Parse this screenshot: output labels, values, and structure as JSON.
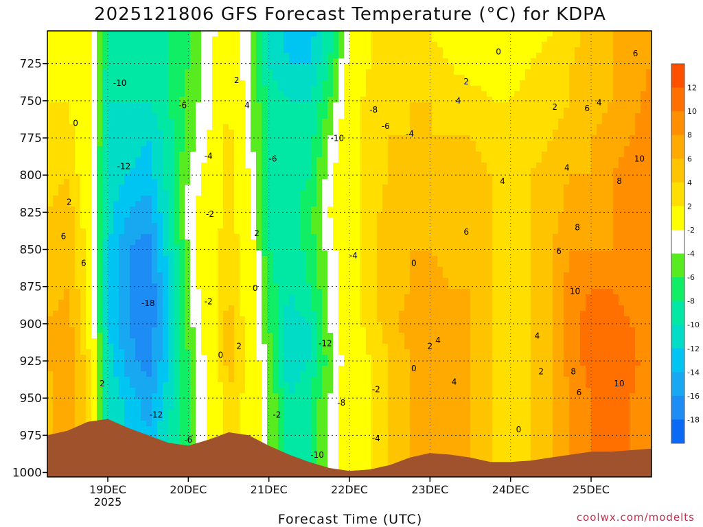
{
  "chart_data": {
    "type": "heatmap",
    "title": "2025121806 GFS Forecast Temperature (°C) for KDPA",
    "xlabel": "Forecast Time (UTC)",
    "ylabel": "",
    "credit": "coolwx.com/modelts",
    "y_unit": "hPa",
    "y_ticks": [
      725,
      750,
      775,
      800,
      825,
      850,
      875,
      900,
      925,
      950,
      975,
      1000
    ],
    "ylim": [
      1003,
      703
    ],
    "x_ticks": [
      {
        "label": "19DEC",
        "sub": "2025",
        "day": 19
      },
      {
        "label": "20DEC",
        "sub": "",
        "day": 20
      },
      {
        "label": "21DEC",
        "sub": "",
        "day": 21
      },
      {
        "label": "22DEC",
        "sub": "",
        "day": 22
      },
      {
        "label": "23DEC",
        "sub": "",
        "day": 23
      },
      {
        "label": "24DEC",
        "sub": "",
        "day": 24
      },
      {
        "label": "25DEC",
        "sub": "",
        "day": 25
      }
    ],
    "xlim_days": [
      18.25,
      25.75
    ],
    "grid": true,
    "colorbar": {
      "placement": "right",
      "labels": [
        "12",
        "10",
        "8",
        "6",
        "4",
        "2",
        "-2",
        "-4",
        "-6",
        "-8",
        "-10",
        "-12",
        "-14",
        "-16",
        "-18"
      ],
      "levels": [
        -20,
        -18,
        -16,
        -14,
        -12,
        -10,
        -8,
        -6,
        -4,
        -2,
        2,
        4,
        6,
        8,
        10,
        12,
        14
      ],
      "colors": [
        "#0a6af5",
        "#1e8cf5",
        "#18a8f2",
        "#00c4f2",
        "#00dcc6",
        "#00e8a4",
        "#10ee66",
        "#58ec20",
        "#ffffff",
        "#ffff00",
        "#ffde00",
        "#ffc400",
        "#ffaa00",
        "#ff8e00",
        "#ff7000",
        "#ff5000"
      ]
    },
    "times_days": [
      18.25,
      18.5,
      18.75,
      19.0,
      19.25,
      19.5,
      19.75,
      20.0,
      20.25,
      20.5,
      20.75,
      21.0,
      21.25,
      21.5,
      21.75,
      22.0,
      22.25,
      22.5,
      22.75,
      23.0,
      23.25,
      23.5,
      23.75,
      24.0,
      24.25,
      24.5,
      24.75,
      25.0,
      25.25,
      25.5,
      25.75
    ],
    "levels_hpa": [
      975,
      950,
      925,
      900,
      875,
      850,
      825,
      800,
      775,
      750,
      725,
      705
    ],
    "temperature_c": [
      [
        5,
        8,
        3,
        -10,
        -12,
        -14,
        -10,
        -6,
        -2,
        4,
        1,
        -4,
        -10,
        -8,
        -4,
        0,
        2,
        4,
        6,
        8,
        7,
        6,
        4,
        2,
        4,
        6,
        8,
        10,
        12,
        10,
        8
      ],
      [
        5,
        8,
        3,
        -10,
        -13,
        -15,
        -11,
        -6,
        -2,
        4,
        1,
        -4,
        -10,
        -8,
        -4,
        0,
        2,
        4,
        6,
        8,
        7,
        6,
        4,
        2,
        4,
        6,
        8,
        10,
        12,
        10,
        8
      ],
      [
        6,
        8,
        3,
        -11,
        -15,
        -17,
        -12,
        -6,
        -1,
        5,
        1,
        -5,
        -12,
        -10,
        -5,
        0,
        2,
        4,
        6,
        8,
        7,
        6,
        4,
        2,
        4,
        6,
        9,
        11,
        12,
        11,
        8
      ],
      [
        6,
        7,
        2,
        -12,
        -16,
        -18,
        -12,
        -5,
        0,
        5,
        1,
        -6,
        -11,
        -10,
        -4,
        0,
        3,
        5,
        7,
        7,
        7,
        6,
        4,
        3,
        4,
        6,
        9,
        11,
        11,
        10,
        8
      ],
      [
        5,
        6,
        2,
        -12,
        -16,
        -18,
        -12,
        -4,
        0,
        4,
        0,
        -7,
        -10,
        -8,
        -4,
        0,
        3,
        5,
        6,
        7,
        6,
        6,
        4,
        3,
        4,
        6,
        9,
        10,
        10,
        9,
        8
      ],
      [
        5,
        6,
        1,
        -12,
        -16,
        -17,
        -11,
        -4,
        0,
        4,
        0,
        -8,
        -10,
        -7,
        -3,
        0,
        3,
        5,
        6,
        6,
        5,
        5,
        4,
        3,
        4,
        6,
        8,
        8,
        8,
        8,
        8
      ],
      [
        4,
        5,
        1,
        -11,
        -14,
        -15,
        -10,
        -3,
        0,
        3,
        -1,
        -8,
        -9,
        -7,
        -2,
        1,
        3,
        5,
        6,
        5,
        5,
        5,
        4,
        3,
        4,
        5,
        7,
        7,
        8,
        9,
        10
      ],
      [
        3,
        4,
        0,
        -11,
        -12,
        -13,
        -9,
        -4,
        -1,
        3,
        -2,
        -8,
        -9,
        -8,
        -3,
        1,
        3,
        4,
        5,
        5,
        4,
        5,
        4,
        3,
        4,
        5,
        6,
        6,
        8,
        9,
        10
      ],
      [
        2,
        3,
        0,
        -10,
        -11,
        -12,
        -9,
        -5,
        -2,
        3,
        -3,
        -9,
        -10,
        -9,
        -4,
        0,
        3,
        4,
        4,
        4,
        4,
        4,
        3,
        3,
        3,
        4,
        5,
        6,
        7,
        8,
        10
      ],
      [
        2,
        2,
        0,
        -10,
        -10,
        -10,
        -8,
        -5,
        -3,
        2,
        -3,
        -9,
        -10,
        -10,
        -6,
        0,
        3,
        3,
        4,
        4,
        3,
        3,
        2,
        2,
        3,
        3,
        4,
        5,
        6,
        7,
        9
      ],
      [
        1,
        1,
        -1,
        -9,
        -9,
        -9,
        -8,
        -6,
        -3,
        1,
        -4,
        -10,
        -12,
        -12,
        -8,
        -1,
        2,
        2,
        3,
        3,
        2,
        1,
        1,
        1,
        2,
        3,
        4,
        5,
        6,
        7,
        8
      ],
      [
        1,
        1,
        -1,
        -9,
        -9,
        -9,
        -8,
        -6,
        -3,
        0,
        -4,
        -10,
        -13,
        -13,
        -9,
        -2,
        2,
        2,
        2,
        2,
        1,
        0,
        0,
        0,
        1,
        2,
        3,
        5,
        6,
        6,
        7
      ]
    ],
    "surface_pressure_hpa": [
      975,
      972,
      966,
      964,
      970,
      975,
      980,
      982,
      978,
      973,
      975,
      982,
      988,
      993,
      997,
      999,
      998,
      995,
      990,
      987,
      988,
      990,
      993,
      993,
      992,
      990,
      988,
      986,
      986,
      985,
      984
    ],
    "contour_labels": [
      {
        "t": "0",
        "day": 18.6,
        "p": 767
      },
      {
        "t": "-10",
        "day": 19.15,
        "p": 740
      },
      {
        "t": "-12",
        "day": 19.2,
        "p": 796
      },
      {
        "t": "2",
        "day": 18.52,
        "p": 820
      },
      {
        "t": "6",
        "day": 18.45,
        "p": 843
      },
      {
        "t": "6",
        "day": 18.7,
        "p": 861
      },
      {
        "t": "-18",
        "day": 19.5,
        "p": 888
      },
      {
        "t": "-12",
        "day": 19.6,
        "p": 963
      },
      {
        "t": "2",
        "day": 18.93,
        "p": 942
      },
      {
        "t": "-6",
        "day": 20.0,
        "p": 980
      },
      {
        "t": "-6",
        "day": 19.93,
        "p": 755
      },
      {
        "t": "2",
        "day": 20.6,
        "p": 738
      },
      {
        "t": "4",
        "day": 20.73,
        "p": 755
      },
      {
        "t": "-4",
        "day": 20.25,
        "p": 789
      },
      {
        "t": "-2",
        "day": 20.27,
        "p": 828
      },
      {
        "t": "2",
        "day": 20.85,
        "p": 841
      },
      {
        "t": "0",
        "day": 20.83,
        "p": 878
      },
      {
        "t": "-2",
        "day": 20.25,
        "p": 887
      },
      {
        "t": "0",
        "day": 20.4,
        "p": 923
      },
      {
        "t": "2",
        "day": 20.63,
        "p": 917
      },
      {
        "t": "-6",
        "day": 21.05,
        "p": 791
      },
      {
        "t": "-2",
        "day": 21.1,
        "p": 963
      },
      {
        "t": "-10",
        "day": 21.85,
        "p": 777
      },
      {
        "t": "-8",
        "day": 22.3,
        "p": 758
      },
      {
        "t": "-6",
        "day": 22.45,
        "p": 769
      },
      {
        "t": "-4",
        "day": 22.75,
        "p": 774
      },
      {
        "t": "-4",
        "day": 22.05,
        "p": 856
      },
      {
        "t": "-12",
        "day": 21.7,
        "p": 915
      },
      {
        "t": "-8",
        "day": 21.9,
        "p": 955
      },
      {
        "t": "-2",
        "day": 22.33,
        "p": 946
      },
      {
        "t": "-10",
        "day": 21.6,
        "p": 990
      },
      {
        "t": "-4",
        "day": 22.33,
        "p": 979
      },
      {
        "t": "0",
        "day": 22.8,
        "p": 861
      },
      {
        "t": "2",
        "day": 23.0,
        "p": 917
      },
      {
        "t": "4",
        "day": 23.1,
        "p": 913
      },
      {
        "t": "0",
        "day": 22.8,
        "p": 932
      },
      {
        "t": "0",
        "day": 23.85,
        "p": 719
      },
      {
        "t": "2",
        "day": 23.45,
        "p": 739
      },
      {
        "t": "4",
        "day": 23.35,
        "p": 752
      },
      {
        "t": "2",
        "day": 24.55,
        "p": 756
      },
      {
        "t": "4",
        "day": 24.7,
        "p": 797
      },
      {
        "t": "4",
        "day": 23.9,
        "p": 806
      },
      {
        "t": "6",
        "day": 23.45,
        "p": 840
      },
      {
        "t": "6",
        "day": 24.6,
        "p": 853
      },
      {
        "t": "4",
        "day": 24.33,
        "p": 910
      },
      {
        "t": "2",
        "day": 24.38,
        "p": 934
      },
      {
        "t": "4",
        "day": 23.3,
        "p": 941
      },
      {
        "t": "0",
        "day": 24.1,
        "p": 973
      },
      {
        "t": "6",
        "day": 25.55,
        "p": 720
      },
      {
        "t": "6",
        "day": 24.95,
        "p": 757
      },
      {
        "t": "4",
        "day": 25.1,
        "p": 753
      },
      {
        "t": "10",
        "day": 25.6,
        "p": 791
      },
      {
        "t": "8",
        "day": 25.35,
        "p": 806
      },
      {
        "t": "8",
        "day": 24.83,
        "p": 837
      },
      {
        "t": "10",
        "day": 24.8,
        "p": 880
      },
      {
        "t": "8",
        "day": 24.78,
        "p": 934
      },
      {
        "t": "6",
        "day": 24.85,
        "p": 948
      },
      {
        "t": "10",
        "day": 25.35,
        "p": 942
      }
    ]
  }
}
